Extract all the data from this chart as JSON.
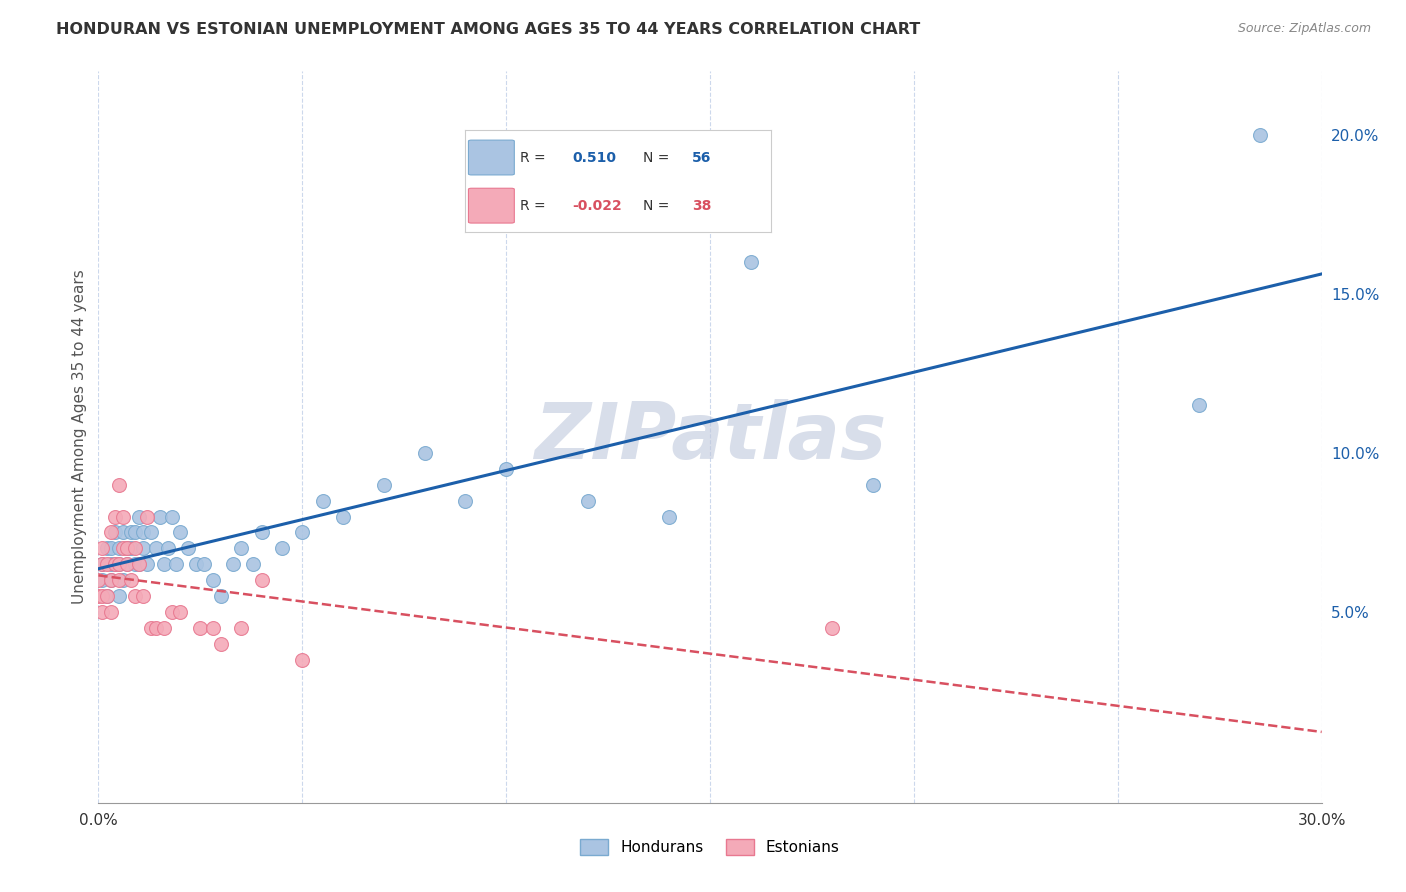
{
  "title": "HONDURAN VS ESTONIAN UNEMPLOYMENT AMONG AGES 35 TO 44 YEARS CORRELATION CHART",
  "source": "Source: ZipAtlas.com",
  "ylabel": "Unemployment Among Ages 35 to 44 years",
  "xlim": [
    0.0,
    0.3
  ],
  "ylim": [
    -0.01,
    0.22
  ],
  "xtick_positions": [
    0.0,
    0.05,
    0.1,
    0.15,
    0.2,
    0.25,
    0.3
  ],
  "xtick_labels": [
    "0.0%",
    "",
    "",
    "",
    "",
    "",
    "30.0%"
  ],
  "ytick_positions": [
    0.05,
    0.1,
    0.15,
    0.2
  ],
  "ytick_labels": [
    "5.0%",
    "10.0%",
    "15.0%",
    "20.0%"
  ],
  "honduran_color": "#aac4e2",
  "estonian_color": "#f4aab8",
  "honduran_edge": "#7aaad0",
  "estonian_edge": "#e87890",
  "trendline_blue": "#1c5faa",
  "trendline_pink": "#d85060",
  "grid_color": "#ccd8ec",
  "watermark_color": "#bfc8dc",
  "background_color": "#ffffff",
  "marker_size": 100,
  "r_honduran": "0.510",
  "n_honduran": "56",
  "r_estonian": "-0.022",
  "n_estonian": "38",
  "honduran_x": [
    0.001,
    0.001,
    0.002,
    0.002,
    0.003,
    0.003,
    0.003,
    0.004,
    0.004,
    0.005,
    0.005,
    0.005,
    0.006,
    0.006,
    0.007,
    0.007,
    0.008,
    0.008,
    0.009,
    0.009,
    0.01,
    0.01,
    0.011,
    0.011,
    0.012,
    0.013,
    0.014,
    0.015,
    0.016,
    0.017,
    0.018,
    0.019,
    0.02,
    0.022,
    0.024,
    0.026,
    0.028,
    0.03,
    0.033,
    0.035,
    0.038,
    0.04,
    0.045,
    0.05,
    0.055,
    0.06,
    0.07,
    0.08,
    0.09,
    0.1,
    0.12,
    0.14,
    0.16,
    0.19,
    0.27,
    0.285
  ],
  "honduran_y": [
    0.06,
    0.065,
    0.055,
    0.07,
    0.06,
    0.065,
    0.07,
    0.065,
    0.075,
    0.055,
    0.065,
    0.07,
    0.06,
    0.075,
    0.065,
    0.07,
    0.07,
    0.075,
    0.065,
    0.075,
    0.065,
    0.08,
    0.07,
    0.075,
    0.065,
    0.075,
    0.07,
    0.08,
    0.065,
    0.07,
    0.08,
    0.065,
    0.075,
    0.07,
    0.065,
    0.065,
    0.06,
    0.055,
    0.065,
    0.07,
    0.065,
    0.075,
    0.07,
    0.075,
    0.085,
    0.08,
    0.09,
    0.1,
    0.085,
    0.095,
    0.085,
    0.08,
    0.16,
    0.09,
    0.115,
    0.2
  ],
  "estonian_x": [
    0.0,
    0.0,
    0.001,
    0.001,
    0.001,
    0.001,
    0.002,
    0.002,
    0.003,
    0.003,
    0.003,
    0.004,
    0.004,
    0.005,
    0.005,
    0.005,
    0.006,
    0.006,
    0.007,
    0.007,
    0.008,
    0.009,
    0.009,
    0.01,
    0.011,
    0.012,
    0.013,
    0.014,
    0.016,
    0.018,
    0.02,
    0.025,
    0.028,
    0.03,
    0.035,
    0.04,
    0.05,
    0.18
  ],
  "estonian_y": [
    0.06,
    0.055,
    0.05,
    0.055,
    0.065,
    0.07,
    0.055,
    0.065,
    0.05,
    0.06,
    0.075,
    0.065,
    0.08,
    0.06,
    0.065,
    0.09,
    0.07,
    0.08,
    0.065,
    0.07,
    0.06,
    0.055,
    0.07,
    0.065,
    0.055,
    0.08,
    0.045,
    0.045,
    0.045,
    0.05,
    0.05,
    0.045,
    0.045,
    0.04,
    0.045,
    0.06,
    0.035,
    0.045
  ]
}
